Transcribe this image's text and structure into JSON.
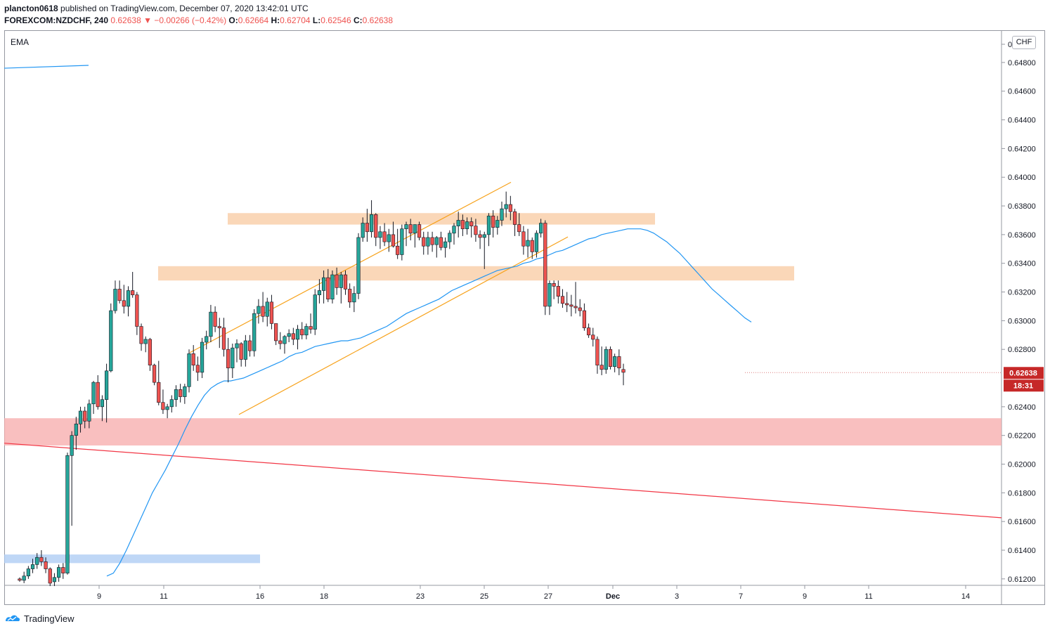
{
  "header": {
    "publisher": "plancton0618",
    "published_text": "published on TradingView.com, December 07, 2020 13:42:01 UTC",
    "symbol": "FOREXCOM:NZDCHF, 240",
    "last": "0.62638",
    "change_arrow": "▼",
    "change": "−0.00266 (−0.42%)",
    "o_label": "O:",
    "o_value": "0.62664",
    "h_label": "H:",
    "h_value": "0.62704",
    "l_label": "L:",
    "l_value": "0.62546",
    "c_label": "C:",
    "c_value": "0.62638"
  },
  "indicator_label": "EMA",
  "currency_button": "CHF",
  "price_badge": "0.62638",
  "countdown_badge": "18:31",
  "footer_brand": "TradingView",
  "colors": {
    "up": "#26a69a",
    "down": "#ef5350",
    "ema": "#2196f3",
    "channel": "#f7a21b",
    "trendline": "#f23645",
    "zone_orange": "#f8c9a0",
    "zone_red": "#f7a9a9",
    "zone_blue": "#a9c9f3",
    "badge": "#c62828"
  },
  "chart_data": {
    "type": "candlestick",
    "y_tick_labels": [
      "0.61200",
      "0.61400",
      "0.61600",
      "0.61800",
      "0.62000",
      "0.62200",
      "0.62400",
      "0.62800",
      "0.63000",
      "0.63200",
      "0.63400",
      "0.63600",
      "0.63800",
      "0.64000",
      "0.64200",
      "0.64400",
      "0.64600",
      "0.64800",
      "0.6"
    ],
    "x_tick_labels": [
      "9",
      "11",
      "16",
      "18",
      "23",
      "25",
      "27",
      "Dec",
      "3",
      "7",
      "9",
      "11",
      "14"
    ],
    "ylim": [
      0.6116,
      0.6502
    ],
    "zones": [
      {
        "color_key": "zone_orange",
        "y_top": 0.6375,
        "y_bottom": 0.6367
      },
      {
        "color_key": "zone_orange",
        "y_top": 0.6338,
        "y_bottom": 0.6328
      },
      {
        "color_key": "zone_red",
        "y_top": 0.6232,
        "y_bottom": 0.6213
      },
      {
        "color_key": "zone_blue",
        "y_top": 0.6137,
        "y_bottom": 0.6131
      }
    ],
    "candles": [
      [
        0.612,
        0.6121,
        0.6118,
        0.6119
      ],
      [
        0.6119,
        0.6125,
        0.6117,
        0.6122
      ],
      [
        0.6122,
        0.6129,
        0.612,
        0.6127
      ],
      [
        0.6127,
        0.6134,
        0.6124,
        0.613
      ],
      [
        0.613,
        0.6138,
        0.6127,
        0.6135
      ],
      [
        0.6135,
        0.614,
        0.6129,
        0.6132
      ],
      [
        0.6132,
        0.6135,
        0.6124,
        0.6127
      ],
      [
        0.6127,
        0.6128,
        0.6115,
        0.6117
      ],
      [
        0.6118,
        0.6124,
        0.6115,
        0.6121
      ],
      [
        0.6121,
        0.613,
        0.6118,
        0.6128
      ],
      [
        0.6128,
        0.6131,
        0.612,
        0.6124
      ],
      [
        0.6124,
        0.6208,
        0.6123,
        0.6206
      ],
      [
        0.6206,
        0.6223,
        0.6157,
        0.622
      ],
      [
        0.622,
        0.6233,
        0.621,
        0.6228
      ],
      [
        0.6228,
        0.624,
        0.6222,
        0.6237
      ],
      [
        0.6237,
        0.624,
        0.6225,
        0.623
      ],
      [
        0.623,
        0.6245,
        0.6225,
        0.6242
      ],
      [
        0.6242,
        0.6258,
        0.6235,
        0.6257
      ],
      [
        0.6257,
        0.6262,
        0.6238,
        0.624
      ],
      [
        0.624,
        0.6248,
        0.623,
        0.6245
      ],
      [
        0.6245,
        0.627,
        0.6229,
        0.6265
      ],
      [
        0.6265,
        0.6312,
        0.6264,
        0.6307
      ],
      [
        0.6307,
        0.6328,
        0.6305,
        0.6322
      ],
      [
        0.6322,
        0.6328,
        0.6312,
        0.6314
      ],
      [
        0.6314,
        0.6325,
        0.6305,
        0.631
      ],
      [
        0.631,
        0.6324,
        0.6303,
        0.6321
      ],
      [
        0.6321,
        0.6334,
        0.6316,
        0.6318
      ],
      [
        0.6318,
        0.632,
        0.629,
        0.6296
      ],
      [
        0.6296,
        0.6298,
        0.6279,
        0.6284
      ],
      [
        0.6284,
        0.6289,
        0.6278,
        0.6287
      ],
      [
        0.6287,
        0.6288,
        0.6265,
        0.6269
      ],
      [
        0.6269,
        0.627,
        0.6255,
        0.6257
      ],
      [
        0.6257,
        0.6272,
        0.6241,
        0.6243
      ],
      [
        0.6243,
        0.6252,
        0.6235,
        0.6238
      ],
      [
        0.6238,
        0.6242,
        0.6232,
        0.624
      ],
      [
        0.624,
        0.6248,
        0.6236,
        0.6245
      ],
      [
        0.6245,
        0.6255,
        0.624,
        0.6252
      ],
      [
        0.6252,
        0.6256,
        0.6243,
        0.6247
      ],
      [
        0.6247,
        0.6256,
        0.6242,
        0.6254
      ],
      [
        0.6254,
        0.628,
        0.625,
        0.6277
      ],
      [
        0.6277,
        0.6283,
        0.6265,
        0.6269
      ],
      [
        0.6269,
        0.6275,
        0.6258,
        0.6264
      ],
      [
        0.6264,
        0.6288,
        0.626,
        0.6285
      ],
      [
        0.6285,
        0.6293,
        0.628,
        0.6289
      ],
      [
        0.6289,
        0.6311,
        0.6285,
        0.6306
      ],
      [
        0.6306,
        0.631,
        0.6292,
        0.6296
      ],
      [
        0.6296,
        0.6302,
        0.6281,
        0.6295
      ],
      [
        0.6295,
        0.6302,
        0.6275,
        0.628
      ],
      [
        0.628,
        0.6288,
        0.6257,
        0.6267
      ],
      [
        0.6267,
        0.6284,
        0.626,
        0.6281
      ],
      [
        0.6281,
        0.6287,
        0.6271,
        0.6284
      ],
      [
        0.6284,
        0.6285,
        0.6268,
        0.6273
      ],
      [
        0.6273,
        0.629,
        0.6268,
        0.6286
      ],
      [
        0.6286,
        0.629,
        0.6275,
        0.6279
      ],
      [
        0.6279,
        0.6308,
        0.6275,
        0.6305
      ],
      [
        0.6305,
        0.6315,
        0.6298,
        0.631
      ],
      [
        0.631,
        0.632,
        0.6299,
        0.6303
      ],
      [
        0.6303,
        0.6316,
        0.6296,
        0.6313
      ],
      [
        0.6313,
        0.6318,
        0.6294,
        0.6298
      ],
      [
        0.6298,
        0.6298,
        0.6283,
        0.6286
      ],
      [
        0.6286,
        0.6292,
        0.628,
        0.6284
      ],
      [
        0.6284,
        0.629,
        0.6277,
        0.6289
      ],
      [
        0.6289,
        0.6294,
        0.6285,
        0.6291
      ],
      [
        0.6291,
        0.6295,
        0.6283,
        0.6287
      ],
      [
        0.6287,
        0.6297,
        0.628,
        0.6294
      ],
      [
        0.6294,
        0.6299,
        0.6287,
        0.629
      ],
      [
        0.629,
        0.6298,
        0.6287,
        0.6296
      ],
      [
        0.6296,
        0.6305,
        0.6291,
        0.6294
      ],
      [
        0.6294,
        0.6322,
        0.629,
        0.6318
      ],
      [
        0.6318,
        0.6329,
        0.6312,
        0.6321
      ],
      [
        0.6321,
        0.6335,
        0.6312,
        0.633
      ],
      [
        0.633,
        0.6336,
        0.6313,
        0.6315
      ],
      [
        0.6315,
        0.6335,
        0.6312,
        0.6332
      ],
      [
        0.6332,
        0.6337,
        0.6318,
        0.6323
      ],
      [
        0.6323,
        0.6334,
        0.6312,
        0.6332
      ],
      [
        0.6332,
        0.6335,
        0.6318,
        0.6322
      ],
      [
        0.6322,
        0.6326,
        0.6309,
        0.6313
      ],
      [
        0.6313,
        0.6324,
        0.6306,
        0.6319
      ],
      [
        0.6319,
        0.6361,
        0.6315,
        0.6358
      ],
      [
        0.6358,
        0.6372,
        0.6355,
        0.6368
      ],
      [
        0.6368,
        0.6378,
        0.6355,
        0.6362
      ],
      [
        0.6362,
        0.6384,
        0.6358,
        0.6374
      ],
      [
        0.6374,
        0.6375,
        0.6352,
        0.6358
      ],
      [
        0.6358,
        0.6366,
        0.635,
        0.6362
      ],
      [
        0.6362,
        0.6368,
        0.6352,
        0.6355
      ],
      [
        0.6355,
        0.6364,
        0.6348,
        0.636
      ],
      [
        0.636,
        0.6369,
        0.6351,
        0.6352
      ],
      [
        0.6352,
        0.6364,
        0.6343,
        0.6346
      ],
      [
        0.6346,
        0.6367,
        0.6342,
        0.6364
      ],
      [
        0.6364,
        0.6369,
        0.6352,
        0.6367
      ],
      [
        0.6367,
        0.6371,
        0.6356,
        0.6361
      ],
      [
        0.6361,
        0.6367,
        0.6351,
        0.6367
      ],
      [
        0.6367,
        0.6369,
        0.6356,
        0.6358
      ],
      [
        0.6358,
        0.6362,
        0.6346,
        0.6352
      ],
      [
        0.6352,
        0.6362,
        0.6346,
        0.6358
      ],
      [
        0.6358,
        0.6362,
        0.6348,
        0.6353
      ],
      [
        0.6353,
        0.6359,
        0.6344,
        0.6358
      ],
      [
        0.6358,
        0.6362,
        0.6349,
        0.6351
      ],
      [
        0.6351,
        0.6358,
        0.6344,
        0.6355
      ],
      [
        0.6355,
        0.6363,
        0.635,
        0.6361
      ],
      [
        0.6361,
        0.6368,
        0.6353,
        0.6366
      ],
      [
        0.6366,
        0.6376,
        0.6358,
        0.637
      ],
      [
        0.637,
        0.6374,
        0.6359,
        0.6364
      ],
      [
        0.6364,
        0.6372,
        0.636,
        0.6369
      ],
      [
        0.6369,
        0.6372,
        0.6358,
        0.6366
      ],
      [
        0.6366,
        0.6371,
        0.6355,
        0.636
      ],
      [
        0.636,
        0.6363,
        0.635,
        0.6358
      ],
      [
        0.6358,
        0.6362,
        0.6336,
        0.636
      ],
      [
        0.636,
        0.6375,
        0.6352,
        0.6373
      ],
      [
        0.6373,
        0.6377,
        0.6358,
        0.6365
      ],
      [
        0.6365,
        0.6373,
        0.636,
        0.637
      ],
      [
        0.637,
        0.6383,
        0.6366,
        0.6378
      ],
      [
        0.6378,
        0.639,
        0.6372,
        0.6381
      ],
      [
        0.6381,
        0.6387,
        0.637,
        0.6376
      ],
      [
        0.6376,
        0.6378,
        0.6359,
        0.6367
      ],
      [
        0.6367,
        0.6375,
        0.6359,
        0.6362
      ],
      [
        0.6362,
        0.6366,
        0.6346,
        0.6352
      ],
      [
        0.6352,
        0.6364,
        0.6344,
        0.6356
      ],
      [
        0.6356,
        0.6358,
        0.6343,
        0.6348
      ],
      [
        0.6348,
        0.6363,
        0.6344,
        0.6361
      ],
      [
        0.6361,
        0.6371,
        0.6358,
        0.6368
      ],
      [
        0.6368,
        0.637,
        0.6304,
        0.631
      ],
      [
        0.631,
        0.6328,
        0.6304,
        0.6326
      ],
      [
        0.6326,
        0.6328,
        0.6315,
        0.6324
      ],
      [
        0.6324,
        0.6328,
        0.6312,
        0.6317
      ],
      [
        0.6317,
        0.6322,
        0.6309,
        0.6312
      ],
      [
        0.6312,
        0.632,
        0.6306,
        0.6311
      ],
      [
        0.6311,
        0.6318,
        0.6303,
        0.631
      ],
      [
        0.631,
        0.6327,
        0.6305,
        0.6309
      ],
      [
        0.6309,
        0.6315,
        0.6303,
        0.6307
      ],
      [
        0.6307,
        0.6312,
        0.6293,
        0.6295
      ],
      [
        0.6295,
        0.6298,
        0.6288,
        0.629
      ],
      [
        0.629,
        0.6295,
        0.6282,
        0.6287
      ],
      [
        0.6287,
        0.6289,
        0.6263,
        0.6269
      ],
      [
        0.6269,
        0.6282,
        0.6262,
        0.6266
      ],
      [
        0.6266,
        0.6282,
        0.6263,
        0.628
      ],
      [
        0.628,
        0.6282,
        0.6266,
        0.6268
      ],
      [
        0.6268,
        0.6277,
        0.6264,
        0.6275
      ],
      [
        0.6275,
        0.628,
        0.6262,
        0.6267
      ],
      [
        0.6266,
        0.627,
        0.6255,
        0.6264
      ]
    ],
    "ema": [
      [
        0.6122,
        0.6124,
        0.6131,
        0.614,
        0.615,
        0.616,
        0.617,
        0.618,
        0.6188,
        0.6196,
        0.6205,
        0.6214,
        0.6224,
        0.6233,
        0.6241,
        0.6248,
        0.6253,
        0.6256,
        0.6258,
        0.6258,
        0.6259,
        0.626,
        0.6262,
        0.6264,
        0.6266,
        0.6268,
        0.627,
        0.6272,
        0.6275,
        0.6277,
        0.6278,
        0.628,
        0.6282,
        0.6283,
        0.6284,
        0.6285,
        0.6286,
        0.6286,
        0.6287,
        0.6288,
        0.629,
        0.6292,
        0.6294,
        0.6296,
        0.6299,
        0.6302,
        0.6305,
        0.6307,
        0.6309,
        0.6311,
        0.6313,
        0.6315,
        0.6318,
        0.6321,
        0.6323,
        0.6325,
        0.6327,
        0.6329,
        0.6331,
        0.6333,
        0.6335,
        0.6336,
        0.6337,
        0.6338,
        0.634,
        0.6341,
        0.6343,
        0.6344,
        0.6346,
        0.6348,
        0.6349,
        0.6351,
        0.6353,
        0.6355,
        0.6357,
        0.6358,
        0.636,
        0.6361,
        0.6362,
        0.6363,
        0.6364,
        0.6364,
        0.6364,
        0.6363,
        0.6361,
        0.6358,
        0.6355,
        0.6351,
        0.6347,
        0.6342,
        0.6337,
        0.6332,
        0.6327,
        0.6322,
        0.6318,
        0.6314,
        0.631,
        0.6306,
        0.6302,
        0.6299
      ],
      [
        0.6476,
        0.6478
      ]
    ]
  }
}
